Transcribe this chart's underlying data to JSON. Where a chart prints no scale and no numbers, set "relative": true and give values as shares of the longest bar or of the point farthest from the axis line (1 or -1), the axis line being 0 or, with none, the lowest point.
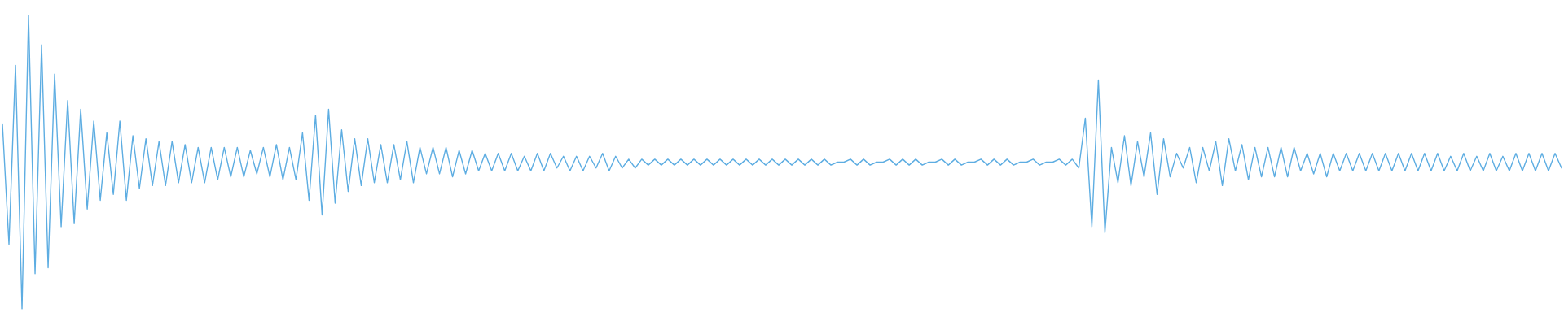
{
  "chart_data": {
    "type": "line",
    "relative": true,
    "marker": "none",
    "line_style": "solid",
    "color": "#5dade2",
    "categories": [
      null,
      null,
      null,
      null,
      null,
      null,
      null,
      null,
      null,
      null,
      null,
      null,
      null,
      null,
      null,
      null,
      null,
      null,
      null,
      null,
      null,
      null,
      null,
      null,
      null,
      null,
      null,
      null,
      null,
      null,
      null,
      null,
      null,
      null,
      null,
      null,
      null,
      null,
      null,
      null,
      null,
      null,
      null,
      null,
      null,
      null,
      null,
      null,
      null,
      null,
      null,
      null,
      null,
      null,
      null,
      null,
      null,
      null,
      null,
      null,
      null,
      null,
      null,
      null,
      null,
      null,
      null,
      null,
      null,
      null,
      null,
      null,
      null,
      null,
      null,
      null,
      null,
      null,
      null,
      null,
      null,
      null,
      null,
      null,
      null,
      null,
      null,
      null,
      null,
      null,
      null,
      null,
      null,
      null,
      null,
      null,
      null,
      null,
      null,
      null,
      null,
      null,
      null,
      null,
      null,
      null,
      null,
      null,
      null,
      null,
      null,
      null,
      null,
      null,
      null,
      null,
      null,
      null,
      null,
      null,
      null,
      null,
      null,
      null,
      null,
      null,
      null,
      null,
      null,
      null,
      null,
      null,
      null,
      null,
      null,
      null,
      null,
      null,
      null,
      null,
      null,
      null,
      null,
      null,
      null,
      null,
      null,
      null,
      null,
      null,
      null,
      null,
      null,
      null,
      null,
      null,
      null,
      null,
      null,
      null,
      null,
      null,
      null,
      null,
      null,
      null,
      null,
      null,
      null,
      null,
      null,
      null,
      null,
      null,
      null,
      null,
      null,
      null,
      null,
      null,
      null,
      null,
      null,
      null,
      null,
      null,
      null,
      null,
      null,
      null,
      null,
      null,
      null,
      null,
      null,
      null,
      null,
      null,
      null,
      null,
      null,
      null,
      null,
      null,
      null,
      null,
      null,
      null,
      null,
      null,
      null,
      null,
      null,
      null,
      null,
      null,
      null,
      null,
      null,
      null,
      null,
      null,
      null,
      null,
      null,
      null,
      null,
      null,
      null,
      null,
      null,
      null,
      null,
      null,
      null,
      null,
      null,
      null,
      null,
      null
    ],
    "values": [
      0.63,
      0.22,
      0.83,
      0.0,
      1.0,
      0.12,
      0.9,
      0.14,
      0.8,
      0.28,
      0.71,
      0.29,
      0.68,
      0.34,
      0.64,
      0.37,
      0.6,
      0.39,
      0.64,
      0.37,
      0.59,
      0.41,
      0.58,
      0.42,
      0.57,
      0.42,
      0.57,
      0.43,
      0.56,
      0.43,
      0.55,
      0.43,
      0.55,
      0.44,
      0.55,
      0.45,
      0.55,
      0.45,
      0.54,
      0.46,
      0.55,
      0.45,
      0.56,
      0.44,
      0.55,
      0.44,
      0.6,
      0.37,
      0.66,
      0.32,
      0.68,
      0.36,
      0.61,
      0.4,
      0.58,
      0.42,
      0.58,
      0.43,
      0.56,
      0.43,
      0.56,
      0.44,
      0.57,
      0.43,
      0.55,
      0.46,
      0.55,
      0.46,
      0.55,
      0.45,
      0.54,
      0.46,
      0.54,
      0.47,
      0.53,
      0.47,
      0.53,
      0.47,
      0.53,
      0.47,
      0.52,
      0.47,
      0.53,
      0.47,
      0.53,
      0.48,
      0.52,
      0.47,
      0.52,
      0.47,
      0.52,
      0.48,
      0.53,
      0.47,
      0.52,
      0.48,
      0.51,
      0.48,
      0.51,
      0.49,
      0.51,
      0.49,
      0.51,
      0.49,
      0.51,
      0.49,
      0.51,
      0.49,
      0.51,
      0.49,
      0.51,
      0.49,
      0.51,
      0.49,
      0.51,
      0.49,
      0.51,
      0.49,
      0.51,
      0.49,
      0.51,
      0.49,
      0.51,
      0.49,
      0.51,
      0.49,
      0.51,
      0.49,
      0.5,
      0.5,
      0.51,
      0.49,
      0.51,
      0.49,
      0.5,
      0.5,
      0.51,
      0.49,
      0.51,
      0.49,
      0.51,
      0.49,
      0.5,
      0.5,
      0.51,
      0.49,
      0.51,
      0.49,
      0.5,
      0.5,
      0.51,
      0.49,
      0.51,
      0.49,
      0.51,
      0.49,
      0.5,
      0.5,
      0.51,
      0.49,
      0.5,
      0.5,
      0.51,
      0.49,
      0.51,
      0.48,
      0.65,
      0.28,
      0.78,
      0.26,
      0.55,
      0.43,
      0.59,
      0.42,
      0.57,
      0.45,
      0.6,
      0.39,
      0.58,
      0.45,
      0.53,
      0.48,
      0.55,
      0.43,
      0.55,
      0.47,
      0.57,
      0.42,
      0.58,
      0.47,
      0.56,
      0.44,
      0.55,
      0.45,
      0.55,
      0.45,
      0.55,
      0.45,
      0.55,
      0.47,
      0.53,
      0.46,
      0.53,
      0.45,
      0.53,
      0.47,
      0.53,
      0.47,
      0.53,
      0.47,
      0.53,
      0.47,
      0.53,
      0.47,
      0.53,
      0.47,
      0.53,
      0.47,
      0.53,
      0.47,
      0.53,
      0.47,
      0.52,
      0.47,
      0.53,
      0.47,
      0.52,
      0.47,
      0.53,
      0.47,
      0.52,
      0.47,
      0.53,
      0.47,
      0.53,
      0.47,
      0.53,
      0.47,
      0.53,
      0.48
    ]
  }
}
